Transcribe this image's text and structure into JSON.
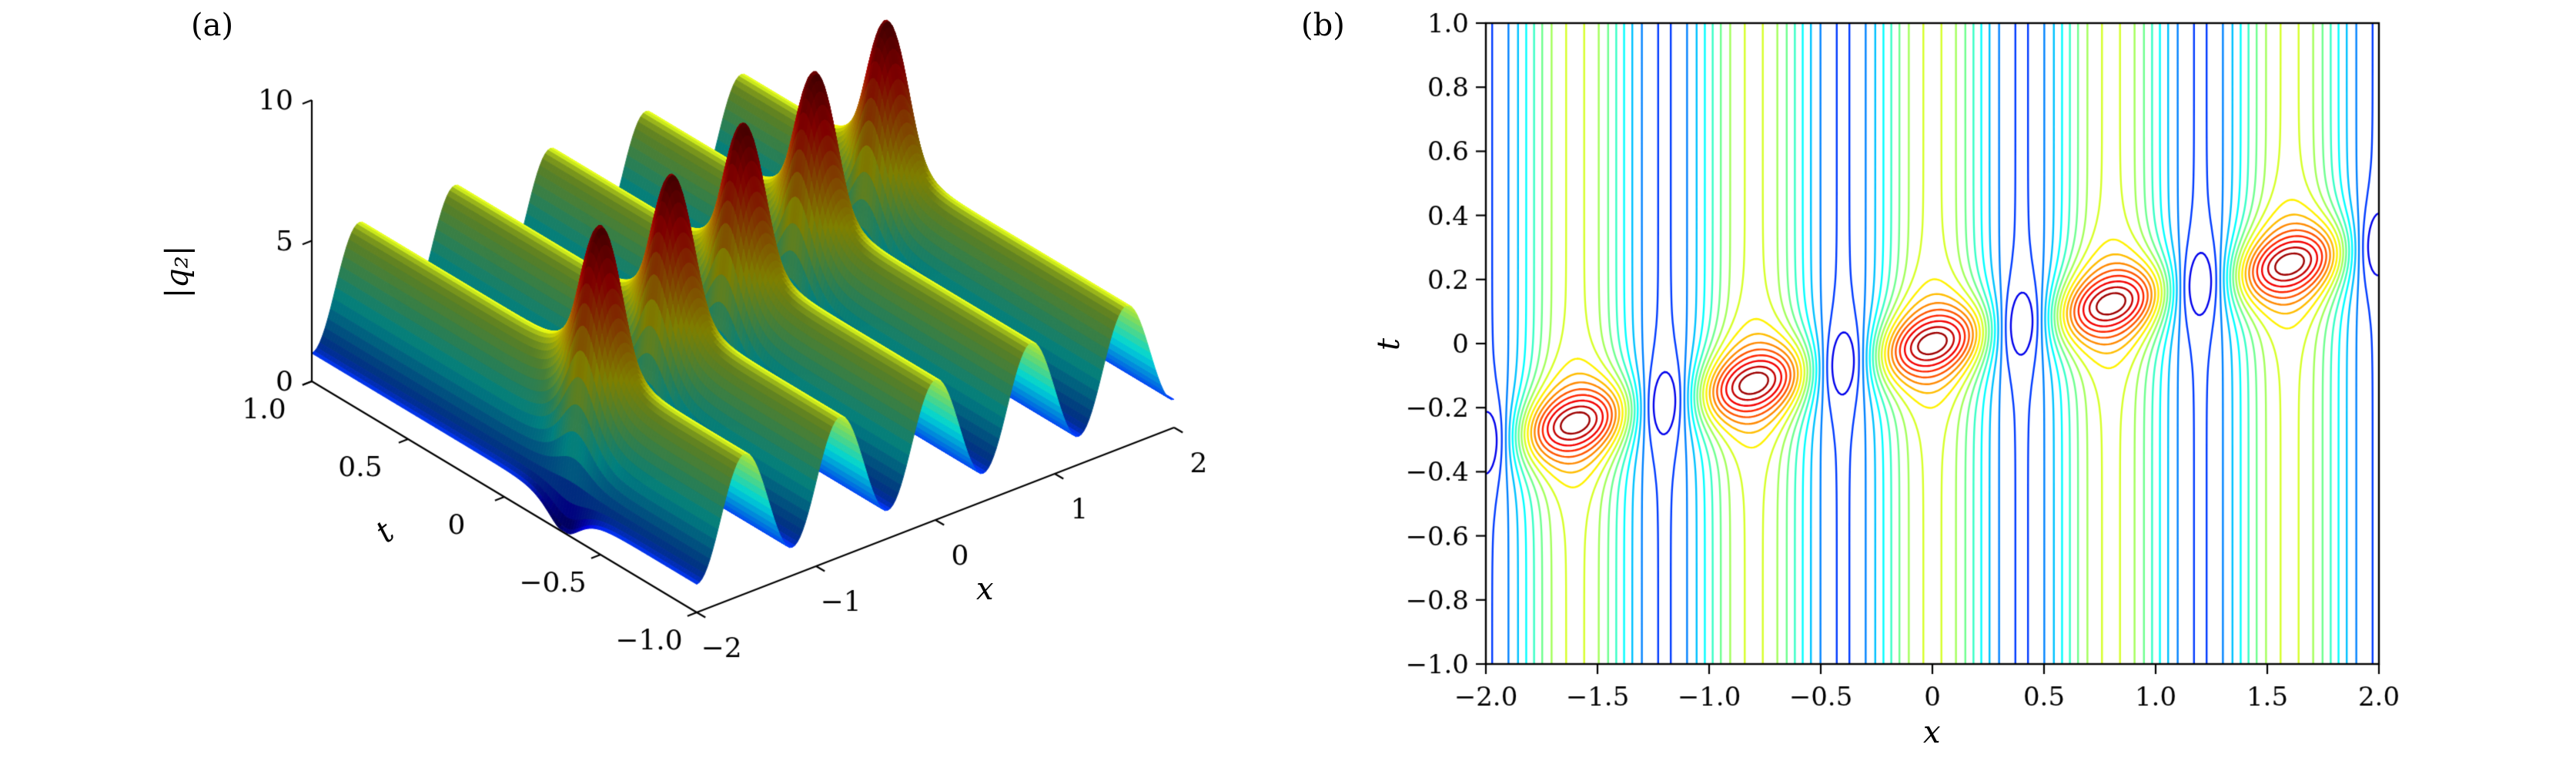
{
  "figure": {
    "background": "#ffffff",
    "panels": [
      {
        "label": "(a)",
        "type": "surface",
        "xlabel": "x",
        "ylabel": "t",
        "zlabel": "|q₂|",
        "xtick_labels": [
          "−2",
          "−1",
          "0",
          "1",
          "2"
        ],
        "ytick_labels": [
          "−1.0",
          "−0.5",
          "0",
          "0.5",
          "1.0"
        ],
        "ztick_labels": [
          "0",
          "5",
          "10"
        ]
      },
      {
        "label": "(b)",
        "type": "contour",
        "xlabel": "x",
        "ylabel": "t",
        "xtick_labels": [
          "−2.0",
          "−1.5",
          "−1.0",
          "−0.5",
          "0",
          "0.5",
          "1.0",
          "1.5",
          "2.0"
        ],
        "ytick_labels": [
          "−1.0",
          "−0.8",
          "−0.6",
          "−0.4",
          "−0.2",
          "0",
          "0.2",
          "0.4",
          "0.6",
          "0.8",
          "1.0"
        ]
      }
    ]
  },
  "chart_data": [
    {
      "type": "surface",
      "panel": "(a)",
      "xlabel": "x",
      "ylabel": "t",
      "zlabel": "|q2|",
      "xlim": [
        -2,
        2
      ],
      "ylim": [
        -1,
        1
      ],
      "zlim": [
        0,
        10
      ],
      "xticks": [
        -2,
        -1,
        0,
        1,
        2
      ],
      "yticks": [
        -1,
        -0.5,
        0,
        0.5,
        1
      ],
      "zticks": [
        0,
        5,
        10
      ],
      "colormap": "jet",
      "grid": false,
      "model": {
        "description": "periodic wave background in x with a diagonal chain of breather peaks in (x,t); |q2| ranges 0..10",
        "x_period": 0.8,
        "background_mean": 3,
        "background_amplitude": 2,
        "band_slope": 0.155,
        "band_width": 0.11,
        "peak_value": 10,
        "trough_dip": 1.0,
        "peak_centers_xt": [
          [
            -1.6,
            -0.248
          ],
          [
            -0.8,
            -0.124
          ],
          [
            0,
            0
          ],
          [
            0.8,
            0.124
          ],
          [
            1.6,
            0.248
          ]
        ]
      },
      "mesh": {
        "nx": 180,
        "nt": 140
      }
    },
    {
      "type": "contour",
      "panel": "(b)",
      "xlabel": "x",
      "ylabel": "t",
      "xlim": [
        -2,
        2
      ],
      "ylim": [
        -1,
        1
      ],
      "xticks": [
        -2,
        -1.5,
        -1,
        -0.5,
        0,
        0.5,
        1,
        1.5,
        2
      ],
      "yticks": [
        -1,
        -0.8,
        -0.6,
        -0.4,
        -0.2,
        0,
        0.2,
        0.4,
        0.6,
        0.8,
        1
      ],
      "levels": [
        0.5,
        1.05,
        1.6,
        2.15,
        2.7,
        3.25,
        3.8,
        4.35,
        4.9,
        5.5,
        6.1,
        6.7,
        7.3,
        7.9,
        8.5,
        9.1,
        9.6
      ],
      "colormap": "jet",
      "grid": {
        "nx": 400,
        "nt": 240
      },
      "model_ref": 0
    }
  ]
}
